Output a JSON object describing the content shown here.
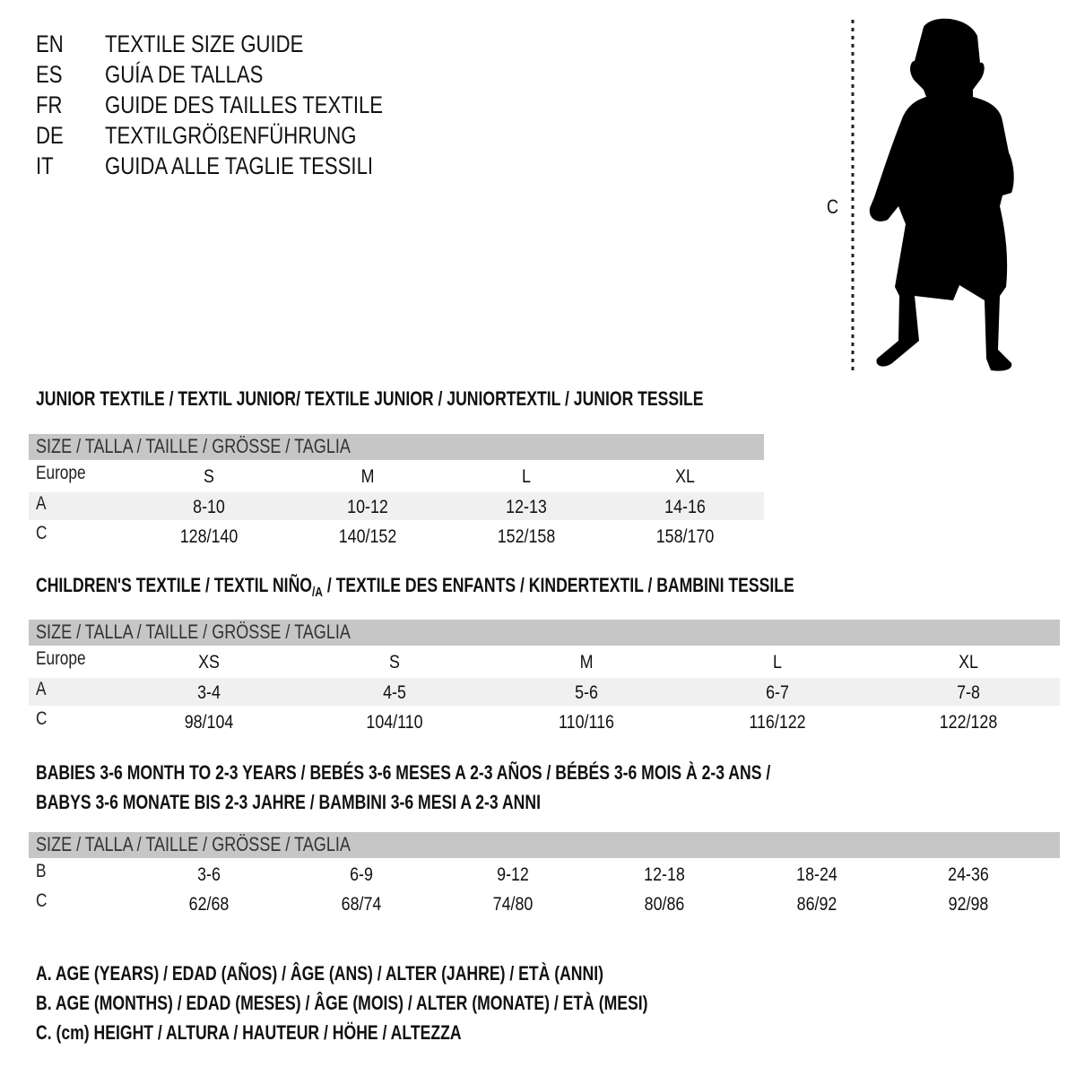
{
  "titles": [
    {
      "code": "EN",
      "text": "TEXTILE SIZE GUIDE"
    },
    {
      "code": "ES",
      "text": "GUÍA DE TALLAS"
    },
    {
      "code": "FR",
      "text": "GUIDE DES TAILLES TEXTILE"
    },
    {
      "code": "DE",
      "text": "TEXTILGRÖßENFÜHRUNG"
    },
    {
      "code": "IT",
      "text": "GUIDA ALLE TAGLIE TESSILI"
    }
  ],
  "figure": {
    "label": "C",
    "icon": "child-silhouette"
  },
  "header_label": "SIZE / TALLA / TAILLE / GRÖSSE / TAGLIA",
  "junior": {
    "title": "JUNIOR TEXTILE / TEXTIL JUNIOR/ TEXTILE JUNIOR / JUNIORTEXTIL / JUNIOR TESSILE",
    "rows": [
      {
        "label": "Europe",
        "cells": [
          "S",
          "M",
          "L",
          "XL"
        ]
      },
      {
        "label": "A",
        "cells": [
          "8-10",
          "10-12",
          "12-13",
          "14-16"
        ]
      },
      {
        "label": "C",
        "cells": [
          "128/140",
          "140/152",
          "152/158",
          "158/170"
        ]
      }
    ]
  },
  "children": {
    "title_a": "CHILDREN'S TEXTILE / TEXTIL NIÑO",
    "title_sub": "/A",
    "title_b": " / TEXTILE DES ENFANTS / KINDERTEXTIL / BAMBINI TESSILE",
    "rows": [
      {
        "label": "Europe",
        "cells": [
          "XS",
          "S",
          "M",
          "L",
          "XL"
        ]
      },
      {
        "label": "A",
        "cells": [
          "3-4",
          "4-5",
          "5-6",
          "6-7",
          "7-8"
        ]
      },
      {
        "label": "C",
        "cells": [
          "98/104",
          "104/110",
          "110/116",
          "116/122",
          "122/128"
        ]
      }
    ]
  },
  "babies": {
    "title_line1": "BABIES 3-6 MONTH TO 2-3 YEARS / BEBÉS 3-6 MESES A 2-3 AÑOS / BÉBÉS 3-6 MOIS À 2-3 ANS /",
    "title_line2": "BABYS 3-6 MONATE BIS 2-3 JAHRE / BAMBINI 3-6 MESI A 2-3 ANNI",
    "rows": [
      {
        "label": "B",
        "cells": [
          "3-6",
          "6-9",
          "9-12",
          "12-18",
          "18-24",
          "24-36"
        ]
      },
      {
        "label": "C",
        "cells": [
          "62/68",
          "68/74",
          "74/80",
          "80/86",
          "86/92",
          "92/98"
        ]
      }
    ]
  },
  "legend": [
    "A. AGE (YEARS) / EDAD (AÑOS) / ÂGE (ANS) / ALTER (JAHRE) / ETÀ (ANNI)",
    "B. AGE (MONTHS) / EDAD (MESES) / ÂGE (MOIS) / ALTER (MONATE) / ETÀ (MESI)",
    "C. (cm) HEIGHT / ALTURA / HAUTEUR / HÖHE / ALTEZZA"
  ],
  "colors": {
    "header_band": "#c6c6c6",
    "row_band": "#f0f0f0",
    "text": "#111111"
  }
}
